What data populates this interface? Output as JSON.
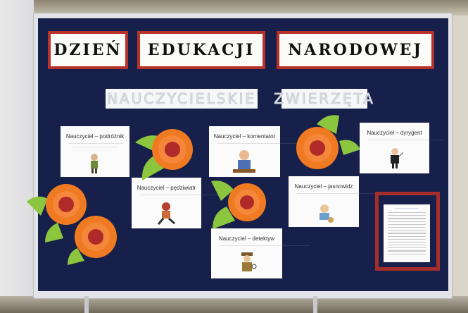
{
  "title_words": [
    "DZIEŃ",
    "EDUKACJI",
    "NARODOWEJ"
  ],
  "strips": [
    "NAUCZYCIELSKIE",
    "ZWIERZĘTA"
  ],
  "cards": [
    {
      "id": "podroznik",
      "title": "Nauczyciel – podróżnik"
    },
    {
      "id": "komentator",
      "title": "Nauczyciel – komentator"
    },
    {
      "id": "dyrygent",
      "title": "Nauczyciel – dyrygent"
    },
    {
      "id": "pedziwiatr",
      "title": "Nauczyciel – pędziwiatr"
    },
    {
      "id": "jasnowidz",
      "title": "Nauczyciel – jasnowidz"
    },
    {
      "id": "detektyw",
      "title": "Nauczyciel – detektyw"
    }
  ],
  "colors": {
    "board": "#16204a",
    "title_border": "#b8322c",
    "flower": "#f07a22",
    "leaf": "#8cc63f",
    "flower_center": "#b02a2a"
  }
}
